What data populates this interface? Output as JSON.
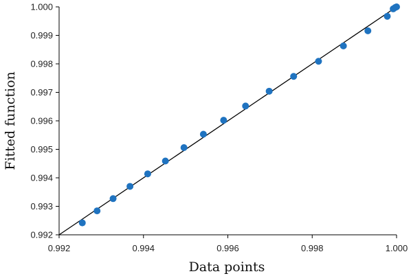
{
  "chart_data": {
    "type": "scatter",
    "xlabel": "Data points",
    "ylabel": "Fitted function",
    "xlim": [
      0.992,
      1.0
    ],
    "ylim": [
      0.992,
      1.0
    ],
    "x_ticks": [
      "0.992",
      "0.994",
      "0.996",
      "0.998",
      "1.000"
    ],
    "y_ticks": [
      "0.992",
      "0.993",
      "0.994",
      "0.995",
      "0.996",
      "0.997",
      "0.998",
      "0.999",
      "1.000"
    ],
    "grid": false,
    "reference_line": {
      "from": [
        0.992,
        0.992
      ],
      "to": [
        1.0,
        1.0
      ]
    },
    "series": [
      {
        "points": [
          [
            0.99255,
            0.99242
          ],
          [
            0.9929,
            0.99284
          ],
          [
            0.99328,
            0.99327
          ],
          [
            0.99368,
            0.9937
          ],
          [
            0.9941,
            0.99414
          ],
          [
            0.99452,
            0.99459
          ],
          [
            0.99496,
            0.99506
          ],
          [
            0.99542,
            0.99553
          ],
          [
            0.9959,
            0.99602
          ],
          [
            0.99642,
            0.99652
          ],
          [
            0.99698,
            0.99704
          ],
          [
            0.99756,
            0.99756
          ],
          [
            0.99815,
            0.99809
          ],
          [
            0.99874,
            0.99863
          ],
          [
            0.99932,
            0.99916
          ],
          [
            0.99978,
            0.99967
          ],
          [
            0.99992,
            0.99993
          ],
          [
            0.99997,
            0.99998
          ],
          [
            1.0,
            1.0
          ]
        ]
      }
    ]
  },
  "colors": {
    "marker": "#1f73c0",
    "line": "#000000",
    "axis": "#000000"
  }
}
